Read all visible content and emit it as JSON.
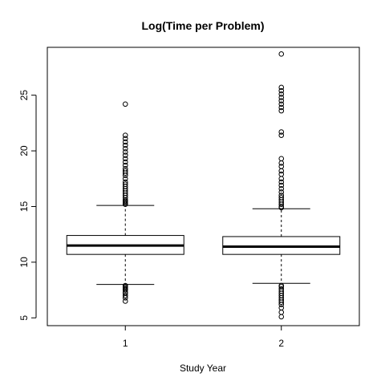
{
  "chart_data": {
    "type": "boxplot",
    "title": "Log(Time per Problem)",
    "xlabel": "Study Year",
    "ylabel": "",
    "categories": [
      "1",
      "2"
    ],
    "ylim": [
      4.3,
      29.3
    ],
    "yticks": [
      5,
      10,
      15,
      20,
      25
    ],
    "grid": false,
    "legend": "none",
    "boxes": [
      {
        "category": "1",
        "whisker_low": 8.0,
        "q1": 10.7,
        "median": 11.5,
        "q3": 12.4,
        "whisker_high": 15.1,
        "outliers": [
          6.5,
          6.8,
          7.0,
          7.2,
          7.3,
          7.5,
          7.6,
          7.7,
          7.8,
          7.9,
          15.2,
          15.3,
          15.4,
          15.5,
          15.6,
          15.8,
          16.0,
          16.2,
          16.4,
          16.6,
          16.8,
          17.0,
          17.2,
          17.5,
          17.8,
          18.0,
          18.2,
          18.4,
          18.7,
          19.0,
          19.3,
          19.6,
          19.9,
          20.2,
          20.5,
          20.8,
          21.1,
          21.4,
          24.2
        ]
      },
      {
        "category": "2",
        "whisker_low": 8.1,
        "q1": 10.7,
        "median": 11.4,
        "q3": 12.3,
        "whisker_high": 14.8,
        "outliers": [
          5.1,
          5.5,
          5.9,
          6.2,
          6.4,
          6.6,
          6.8,
          7.0,
          7.2,
          7.4,
          7.6,
          7.8,
          7.9,
          14.9,
          15.0,
          15.2,
          15.4,
          15.6,
          15.8,
          16.0,
          16.3,
          16.6,
          16.9,
          17.2,
          17.5,
          17.9,
          18.2,
          18.6,
          18.9,
          19.3,
          21.4,
          21.7,
          23.6,
          23.9,
          24.2,
          24.5,
          24.8,
          25.1,
          25.4,
          25.7,
          28.7
        ]
      }
    ]
  }
}
